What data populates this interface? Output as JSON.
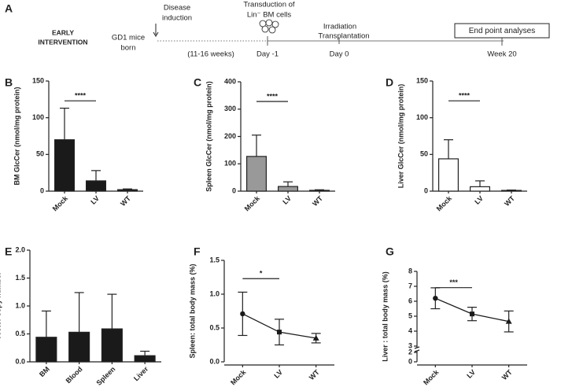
{
  "timeline": {
    "label": "A",
    "title": [
      "EARLY",
      "INTERVENTION"
    ],
    "birth": [
      "GD1 mice",
      "born"
    ],
    "induction": [
      "Disease",
      "induction"
    ],
    "transduction": [
      "Transduction of",
      "Lin⁻ BM cells"
    ],
    "interval": "(11-16 weeks)",
    "day_minus1": "Day -1",
    "procedure": [
      "Irradiation",
      "Transplantation"
    ],
    "day0": "Day 0",
    "endpoint": "End point analyses",
    "week20": "Week 20"
  },
  "chart_data": [
    {
      "type": "bar",
      "label": "B",
      "ylabel": "BM GlcCer (nmol/mg protein)",
      "categories": [
        "Mock",
        "LV",
        "WT"
      ],
      "values": [
        70,
        14,
        2
      ],
      "errors": [
        43,
        14,
        1
      ],
      "color": "#1a1a1a",
      "ylim": [
        0,
        150
      ],
      "yticks": [
        0,
        50,
        100,
        150
      ],
      "significance": "****"
    },
    {
      "type": "bar",
      "label": "C",
      "ylabel": "Spleen GlcCer (nmol/mg protein)",
      "categories": [
        "Mock",
        "LV",
        "WT"
      ],
      "values": [
        127,
        17,
        3
      ],
      "errors": [
        78,
        17,
        2
      ],
      "color": "#999999",
      "ylim": [
        0,
        400
      ],
      "yticks": [
        0,
        100,
        200,
        300,
        400
      ],
      "significance": "****"
    },
    {
      "type": "bar",
      "label": "D",
      "ylabel": "Liver GlcCer (nmol/mg protein)",
      "categories": [
        "Mock",
        "LV",
        "WT"
      ],
      "values": [
        44,
        6,
        1
      ],
      "errors": [
        26,
        8,
        0.5
      ],
      "color": "#ffffff",
      "ylim": [
        0,
        150
      ],
      "yticks": [
        0,
        50,
        100,
        150
      ],
      "significance": "****"
    },
    {
      "type": "bar",
      "label": "E",
      "ylabel": "Vector copy number",
      "categories": [
        "BM",
        "Blood",
        "Spleen",
        "Liver"
      ],
      "values": [
        0.44,
        0.53,
        0.59,
        0.11
      ],
      "errors": [
        0.47,
        0.71,
        0.62,
        0.08
      ],
      "color": "#1a1a1a",
      "ylim": [
        0,
        2
      ],
      "yticks": [
        {
          "value": 0,
          "label": "0.0"
        },
        {
          "value": 0.5,
          "label": "0.5"
        },
        {
          "value": 1,
          "label": "1.0"
        },
        {
          "value": 1.5,
          "label": "1.5"
        },
        {
          "value": 2,
          "label": "2.0"
        }
      ]
    },
    {
      "type": "line",
      "label": "F",
      "ylabel": "Spleen: total body mass (%)",
      "categories": [
        "Mock",
        "LV",
        "WT"
      ],
      "values": [
        0.71,
        0.44,
        0.35
      ],
      "errors": [
        0.32,
        0.19,
        0.07
      ],
      "color": "#1a1a1a",
      "markers": [
        "circle",
        "square",
        "triangle"
      ],
      "ylim": [
        0,
        1.5
      ],
      "yticks": [
        {
          "value": 0,
          "label": "0.0"
        },
        {
          "value": 0.5,
          "label": "0.5"
        },
        {
          "value": 1,
          "label": "1.0"
        },
        {
          "value": 1.5,
          "label": "1.5"
        }
      ],
      "significance": "*"
    },
    {
      "type": "line",
      "label": "G",
      "ylabel": "Liver : total body mass (%)",
      "categories": [
        "Mock",
        "LV",
        "WT"
      ],
      "values": [
        6.2,
        5.15,
        4.65
      ],
      "errors": [
        0.7,
        0.45,
        0.7
      ],
      "color": "#1a1a1a",
      "markers": [
        "circle",
        "square",
        "triangle"
      ],
      "ylim": [
        0,
        8
      ],
      "ybreak": [
        2,
        3
      ],
      "yticks": [
        0,
        2,
        3,
        4,
        5,
        6,
        7,
        8
      ],
      "significance": "***"
    }
  ]
}
